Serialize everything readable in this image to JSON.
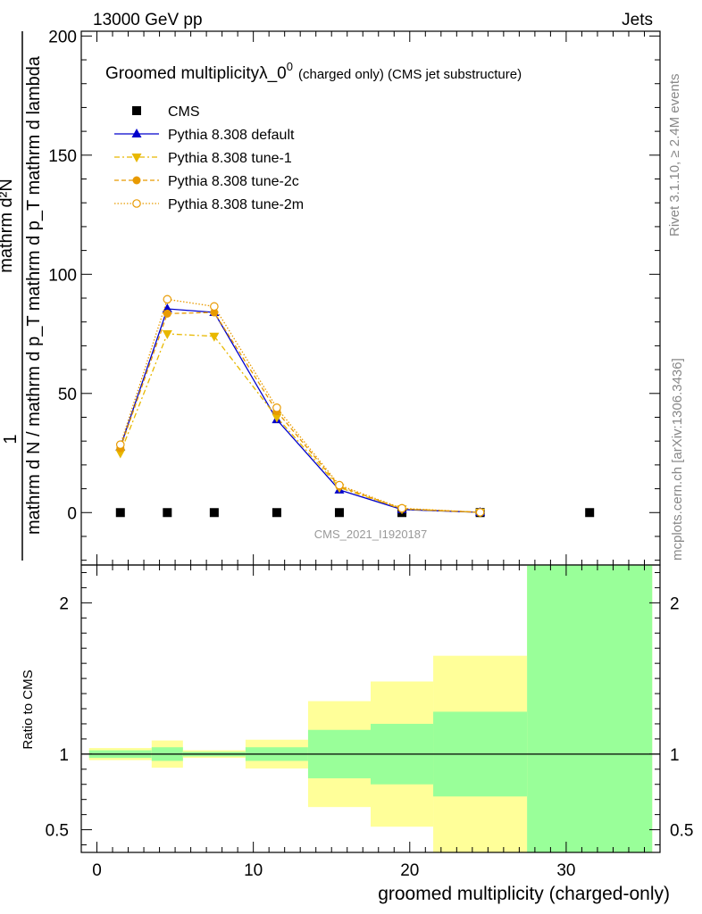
{
  "header": {
    "left": "13000 GeV pp",
    "right": "Jets"
  },
  "side_labels": {
    "rivet": "Rivet 3.1.10, ≥ 2.4M events",
    "mcplots": "mcplots.cern.ch [arXiv:1306.3436]"
  },
  "chart_data": [
    {
      "type": "line",
      "title_main": "Groomed multiplicityλ_0",
      "title_sup": "0",
      "title_suffix": "(charged only) (CMS jet substructure)",
      "ylabel_num": "mathrm d²N",
      "ylabel_den": "mathrm d N / mathrm d p_T mathrm d p_T mathrm d lambda",
      "ylabel_one": "1",
      "watermark": "CMS_2021_I1920187",
      "xlim": [
        -1,
        36
      ],
      "ylim": [
        -22,
        202
      ],
      "yticks": [
        0,
        50,
        100,
        150,
        200
      ],
      "xticks": [
        0,
        10,
        20,
        30
      ],
      "series": [
        {
          "name": "CMS",
          "color": "#000000",
          "marker": "square",
          "x": [
            1.5,
            4.5,
            7.5,
            11.5,
            15.5,
            19.5,
            24.5,
            31.5
          ],
          "y": [
            0,
            0,
            0,
            0,
            0,
            0,
            0,
            0
          ]
        },
        {
          "name": "Pythia 8.308 default",
          "color": "#0000cc",
          "marker": "triangle-up",
          "dash": "",
          "x": [
            1.5,
            4.5,
            7.5,
            11.5,
            15.5,
            19.5,
            24.5
          ],
          "y": [
            27.5,
            85.5,
            84.0,
            39.0,
            9.5,
            1.3,
            0.1
          ]
        },
        {
          "name": "Pythia 8.308 tune-1",
          "color": "#e8b800",
          "marker": "triangle-down",
          "dash": "6,3,2,3",
          "x": [
            1.5,
            4.5,
            7.5,
            11.5,
            15.5,
            19.5,
            24.5
          ],
          "y": [
            25.0,
            75.0,
            74.0,
            40.0,
            10.5,
            1.5,
            0.1
          ]
        },
        {
          "name": "Pythia 8.308 tune-2c",
          "color": "#e89a00",
          "marker": "circle-filled",
          "dash": "5,3",
          "x": [
            1.5,
            4.5,
            7.5,
            11.5,
            15.5,
            19.5,
            24.5
          ],
          "y": [
            27.0,
            83.5,
            84.0,
            42.5,
            11.0,
            1.6,
            0.1
          ]
        },
        {
          "name": "Pythia 8.308 tune-2m",
          "color": "#e89a00",
          "marker": "circle-open",
          "dash": "1.5,2",
          "x": [
            1.5,
            4.5,
            7.5,
            11.5,
            15.5,
            19.5,
            24.5
          ],
          "y": [
            28.5,
            89.5,
            86.5,
            44.0,
            11.5,
            1.8,
            0.1
          ]
        }
      ]
    },
    {
      "type": "area",
      "ylabel": "Ratio to CMS",
      "xlabel": "groomed multiplicity (charged-only)",
      "xlim": [
        -1,
        36
      ],
      "ylim": [
        0.35,
        2.25
      ],
      "yticks": [
        0.5,
        1,
        2
      ],
      "ytick_labels": [
        "0.5",
        "1",
        "2"
      ],
      "xticks": [
        0,
        10,
        20,
        30
      ],
      "reference_line": 1,
      "bands": [
        {
          "x0": -0.5,
          "x1": 3.5,
          "green": [
            0.975,
            1.025
          ],
          "yellow": [
            0.96,
            1.04
          ]
        },
        {
          "x0": 3.5,
          "x1": 5.5,
          "green": [
            0.955,
            1.045
          ],
          "yellow": [
            0.91,
            1.09
          ]
        },
        {
          "x0": 5.5,
          "x1": 9.5,
          "green": [
            0.985,
            1.015
          ],
          "yellow": [
            0.975,
            1.025
          ]
        },
        {
          "x0": 9.5,
          "x1": 13.5,
          "green": [
            0.955,
            1.045
          ],
          "yellow": [
            0.905,
            1.095
          ]
        },
        {
          "x0": 13.5,
          "x1": 17.5,
          "green": [
            0.84,
            1.16
          ],
          "yellow": [
            0.65,
            1.35
          ]
        },
        {
          "x0": 17.5,
          "x1": 21.5,
          "green": [
            0.8,
            1.2
          ],
          "yellow": [
            0.52,
            1.48
          ]
        },
        {
          "x0": 21.5,
          "x1": 27.5,
          "green": [
            0.72,
            1.28
          ],
          "yellow": [
            0.35,
            1.65
          ]
        },
        {
          "x0": 27.5,
          "x1": 35.5,
          "green": [
            0.35,
            2.25
          ],
          "yellow": [
            0.35,
            2.25
          ]
        }
      ]
    }
  ]
}
